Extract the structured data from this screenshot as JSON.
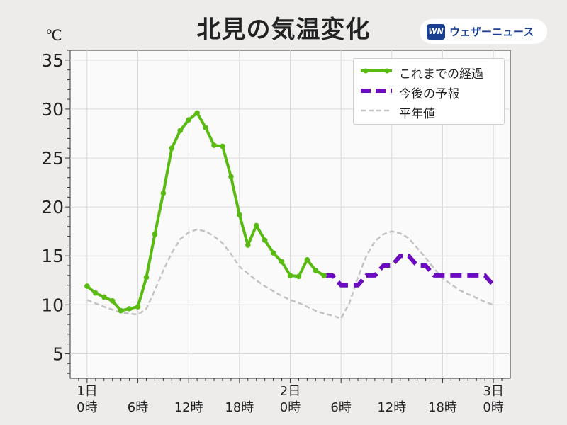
{
  "title": "北見の気温変化",
  "unit": "℃",
  "brand": {
    "logo": "WN",
    "name": "ウェザーニュース"
  },
  "legend": [
    {
      "label": "これまでの経過",
      "style": "green-solid-marker"
    },
    {
      "label": "今後の予報",
      "style": "purple-dashed"
    },
    {
      "label": "平年値",
      "style": "gray-dashed"
    }
  ],
  "colors": {
    "observed": "#59bb12",
    "forecast": "#6c0cc0",
    "normal": "#c3c3c3",
    "plot_bg": "#fafafa",
    "grid": "#d9d9d9"
  },
  "chart_data": {
    "type": "line",
    "title": "北見の気温変化",
    "ylabel": "℃",
    "ylim": [
      2.5,
      36
    ],
    "xlim": [
      -2,
      50
    ],
    "yticks": [
      5,
      10,
      15,
      20,
      25,
      30,
      35
    ],
    "xticks": [
      {
        "x": 0,
        "day": "1日",
        "hour": "0時"
      },
      {
        "x": 6,
        "day": "",
        "hour": "6時"
      },
      {
        "x": 12,
        "day": "",
        "hour": "12時"
      },
      {
        "x": 18,
        "day": "",
        "hour": "18時"
      },
      {
        "x": 24,
        "day": "2日",
        "hour": "0時"
      },
      {
        "x": 30,
        "day": "",
        "hour": "6時"
      },
      {
        "x": 36,
        "day": "",
        "hour": "12時"
      },
      {
        "x": 42,
        "day": "",
        "hour": "18時"
      },
      {
        "x": 48,
        "day": "3日",
        "hour": "0時"
      }
    ],
    "grid": true,
    "legend_position": "top-right",
    "series": [
      {
        "name": "これまでの経過",
        "x": [
          0,
          1,
          2,
          3,
          4,
          5,
          6,
          7,
          8,
          9,
          10,
          11,
          12,
          13,
          14,
          15,
          16,
          17,
          18,
          19,
          20,
          21,
          22,
          23,
          24,
          25,
          26,
          27,
          28
        ],
        "y": [
          11.9,
          11.2,
          10.8,
          10.4,
          9.4,
          9.6,
          9.8,
          12.8,
          17.2,
          21.4,
          26.0,
          27.8,
          28.9,
          29.6,
          28.1,
          26.3,
          26.2,
          23.1,
          19.2,
          16.1,
          18.1,
          16.6,
          15.3,
          14.4,
          13.0,
          12.9,
          14.6,
          13.5,
          13.0
        ]
      },
      {
        "name": "今後の予報",
        "x": [
          28,
          29,
          30,
          31,
          32,
          33,
          34,
          35,
          36,
          37,
          38,
          39,
          40,
          41,
          42,
          43,
          44,
          45,
          46,
          47,
          48
        ],
        "y": [
          13,
          13,
          12,
          12,
          12,
          13,
          13,
          14,
          14,
          15,
          15,
          14,
          14,
          13,
          13,
          13,
          13,
          13,
          13,
          13,
          12
        ]
      },
      {
        "name": "平年値",
        "x": [
          0,
          2,
          4,
          6,
          7,
          8,
          9,
          10,
          11,
          12,
          13,
          14,
          15,
          16,
          17,
          18,
          19,
          20,
          21,
          22,
          23,
          24,
          25,
          26,
          27,
          28,
          29,
          30,
          31,
          32,
          33,
          34,
          35,
          36,
          37,
          38,
          39,
          40,
          41,
          42,
          43,
          44,
          45,
          46,
          47,
          48
        ],
        "y": [
          10.5,
          9.8,
          9.2,
          9.0,
          9.6,
          11.5,
          13.5,
          15.3,
          16.7,
          17.4,
          17.7,
          17.5,
          17.0,
          16.3,
          15.2,
          13.9,
          13.2,
          12.5,
          11.9,
          11.4,
          10.9,
          10.5,
          10.2,
          9.8,
          9.4,
          9.1,
          8.9,
          8.6,
          10.2,
          12.8,
          15.0,
          16.5,
          17.2,
          17.5,
          17.3,
          16.8,
          15.8,
          14.8,
          13.7,
          12.7,
          12.1,
          11.5,
          11.1,
          10.7,
          10.3,
          10.0
        ]
      }
    ]
  }
}
